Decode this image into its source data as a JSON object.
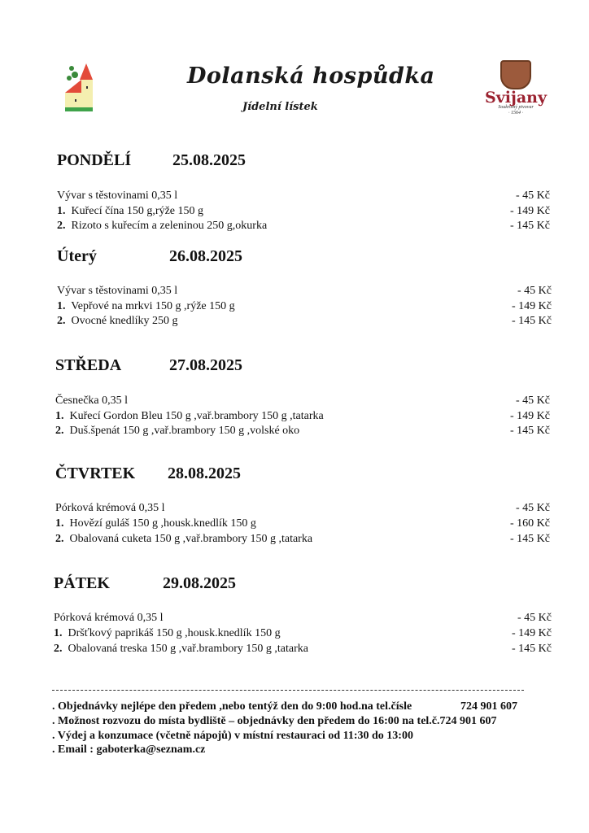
{
  "header": {
    "title": "Dolanská hospůdka",
    "subtitle": "Jídelní lístek",
    "logo_left": "village-church-logo",
    "logo_right": {
      "name": "Svijany",
      "tagline": "Soukromý pivovar",
      "year": "· 1564 ·"
    }
  },
  "days": [
    {
      "name": "PONDĚLÍ",
      "date": "25.08.2025",
      "items": [
        {
          "num": "",
          "text": "Vývar s těstovinami  0,35 l",
          "price": "-  45 Kč"
        },
        {
          "num": "1.",
          "text": "Kuřecí čína  150 g,rýže 150 g",
          "price": "- 149 Kč"
        },
        {
          "num": "2.",
          "text": "Rizoto s kuřecím a zeleninou  250 g,okurka",
          "price": "- 145 Kč"
        }
      ]
    },
    {
      "name": "Úterý",
      "date": "26.08.2025",
      "items": [
        {
          "num": "",
          "text": "Vývar s těstovinami  0,35 l",
          "price": "-  45 Kč"
        },
        {
          "num": "1.",
          "text": "Vepřové na mrkvi  150 g ,rýže  150 g",
          "price": "- 149 Kč"
        },
        {
          "num": "2.",
          "text": "Ovocné knedlíky  250 g",
          "price": "- 145 Kč"
        }
      ]
    },
    {
      "name": "STŘEDA",
      "date": "27.08.2025",
      "items": [
        {
          "num": "",
          "text": "Česnečka  0,35 l",
          "price": "-  45 Kč"
        },
        {
          "num": "1.",
          "text": "Kuřecí Gordon Bleu  150 g ,vař.brambory  150 g ,tatarka",
          "price": "- 149 Kč"
        },
        {
          "num": "2.",
          "text": "Duš.špenát 150 g ,vař.brambory  150 g ,volské oko",
          "price": "- 145 Kč"
        }
      ]
    },
    {
      "name": "ČTVRTEK",
      "date": "28.08.2025",
      "items": [
        {
          "num": "",
          "text": "Pórková krémová   0,35 l",
          "price": "-  45 Kč"
        },
        {
          "num": "1.",
          "text": "Hovězí guláš  150 g ,housk.knedlík  150 g",
          "price": "- 160 Kč"
        },
        {
          "num": "2.",
          "text": "Obalovaná cuketa 150 g ,vař.brambory  150 g ,tatarka",
          "price": "- 145 Kč"
        }
      ]
    },
    {
      "name": "PÁTEK",
      "date": "29.08.2025",
      "items": [
        {
          "num": "",
          "text": "Pórková krémová  0,35 l",
          "price": "-  45 Kč"
        },
        {
          "num": "1.",
          "text": "Dršťkový paprikáš  150 g ,housk.knedlík  150 g",
          "price": "- 149 Kč"
        },
        {
          "num": "2.",
          "text": "Obalovaná treska  150 g ,vař.brambory  150 g ,tatarka",
          "price": "- 145 Kč"
        }
      ]
    }
  ],
  "footer": {
    "lines": [
      ".  Objednávky nejlépe den předem ,nebo tentýž den do 9:00 hod.na tel.čísle",
      ".  Možnost rozvozu do místa bydliště – objednávky den předem do 16:00 na tel.č.724 901 607",
      ".  Výdej a konzumace  (včetně nápojů) v místní restauraci od 11:30 do 13:00",
      ".  Email : gaboterka@seznam.cz"
    ],
    "phone": "724 901 607"
  }
}
